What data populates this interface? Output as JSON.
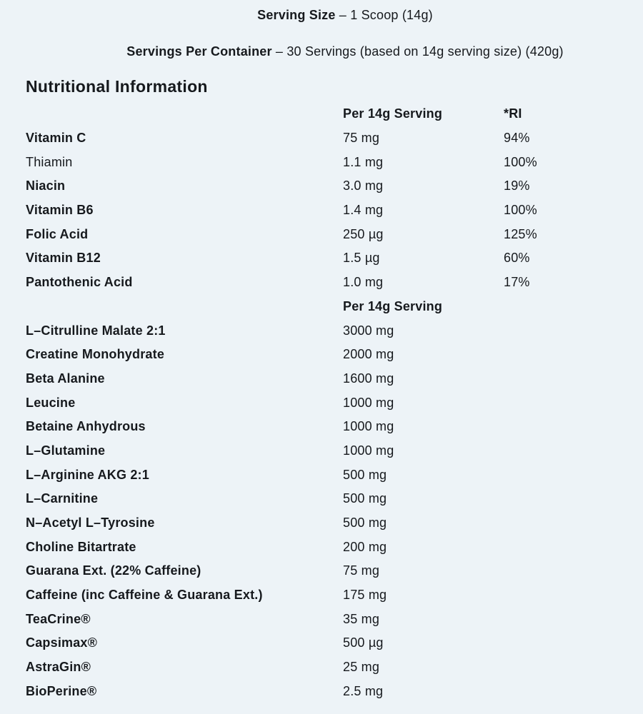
{
  "page": {
    "background_color": "#edf3f7",
    "text_color": "#16191d"
  },
  "header": {
    "serving_size_label": "Serving Size",
    "serving_size_rest": "– 1 Scoop (14g)",
    "servings_label": "Servings Per Container",
    "servings_rest": "– 30 Servings (based on 14g serving size) (420g)",
    "title": "Nutritional Information"
  },
  "table": {
    "col_serving": "Per 14g Serving",
    "col_ri": "*RI",
    "section2_header": "Per 14g Serving",
    "vitamins": [
      {
        "name": "Vitamin C",
        "bold": true,
        "amount": "75 mg",
        "ri": "94%"
      },
      {
        "name": "Thiamin",
        "bold": false,
        "amount": "1.1 mg",
        "ri": "100%"
      },
      {
        "name": "Niacin",
        "bold": true,
        "amount": "3.0 mg",
        "ri": "19%"
      },
      {
        "name": "Vitamin B6",
        "bold": true,
        "amount": "1.4 mg",
        "ri": "100%"
      },
      {
        "name": "Folic Acid",
        "bold": true,
        "amount": "250 µg",
        "ri": "125%"
      },
      {
        "name": "Vitamin B12",
        "bold": true,
        "amount": "1.5 µg",
        "ri": "60%"
      },
      {
        "name": "Pantothenic Acid",
        "bold": true,
        "amount": "1.0 mg",
        "ri": "17%"
      }
    ],
    "ingredients": [
      {
        "name": "L–Citrulline Malate 2:1",
        "amount": "3000 mg"
      },
      {
        "name": "Creatine Monohydrate",
        "amount": "2000 mg"
      },
      {
        "name": "Beta Alanine",
        "amount": "1600 mg"
      },
      {
        "name": "Leucine",
        "amount": "1000 mg"
      },
      {
        "name": "Betaine Anhydrous",
        "amount": "1000 mg"
      },
      {
        "name": "L–Glutamine",
        "amount": "1000 mg"
      },
      {
        "name": "L–Arginine AKG 2:1",
        "amount": "500 mg"
      },
      {
        "name": "L–Carnitine",
        "amount": "500 mg"
      },
      {
        "name": "N–Acetyl L–Tyrosine",
        "amount": "500 mg"
      },
      {
        "name": "Choline Bitartrate",
        "amount": "200 mg"
      },
      {
        "name": "Guarana Ext. (22% Caffeine)",
        "amount": "75 mg"
      },
      {
        "name": "Caffeine (inc Caffeine & Guarana Ext.)",
        "amount": "175 mg"
      },
      {
        "name": "TeaCrine®",
        "amount": "35 mg"
      },
      {
        "name": "Capsimax®",
        "amount": "500 µg"
      },
      {
        "name": "AstraGin®",
        "amount": "25 mg"
      },
      {
        "name": "BioPerine®",
        "amount": "2.5 mg"
      }
    ]
  }
}
